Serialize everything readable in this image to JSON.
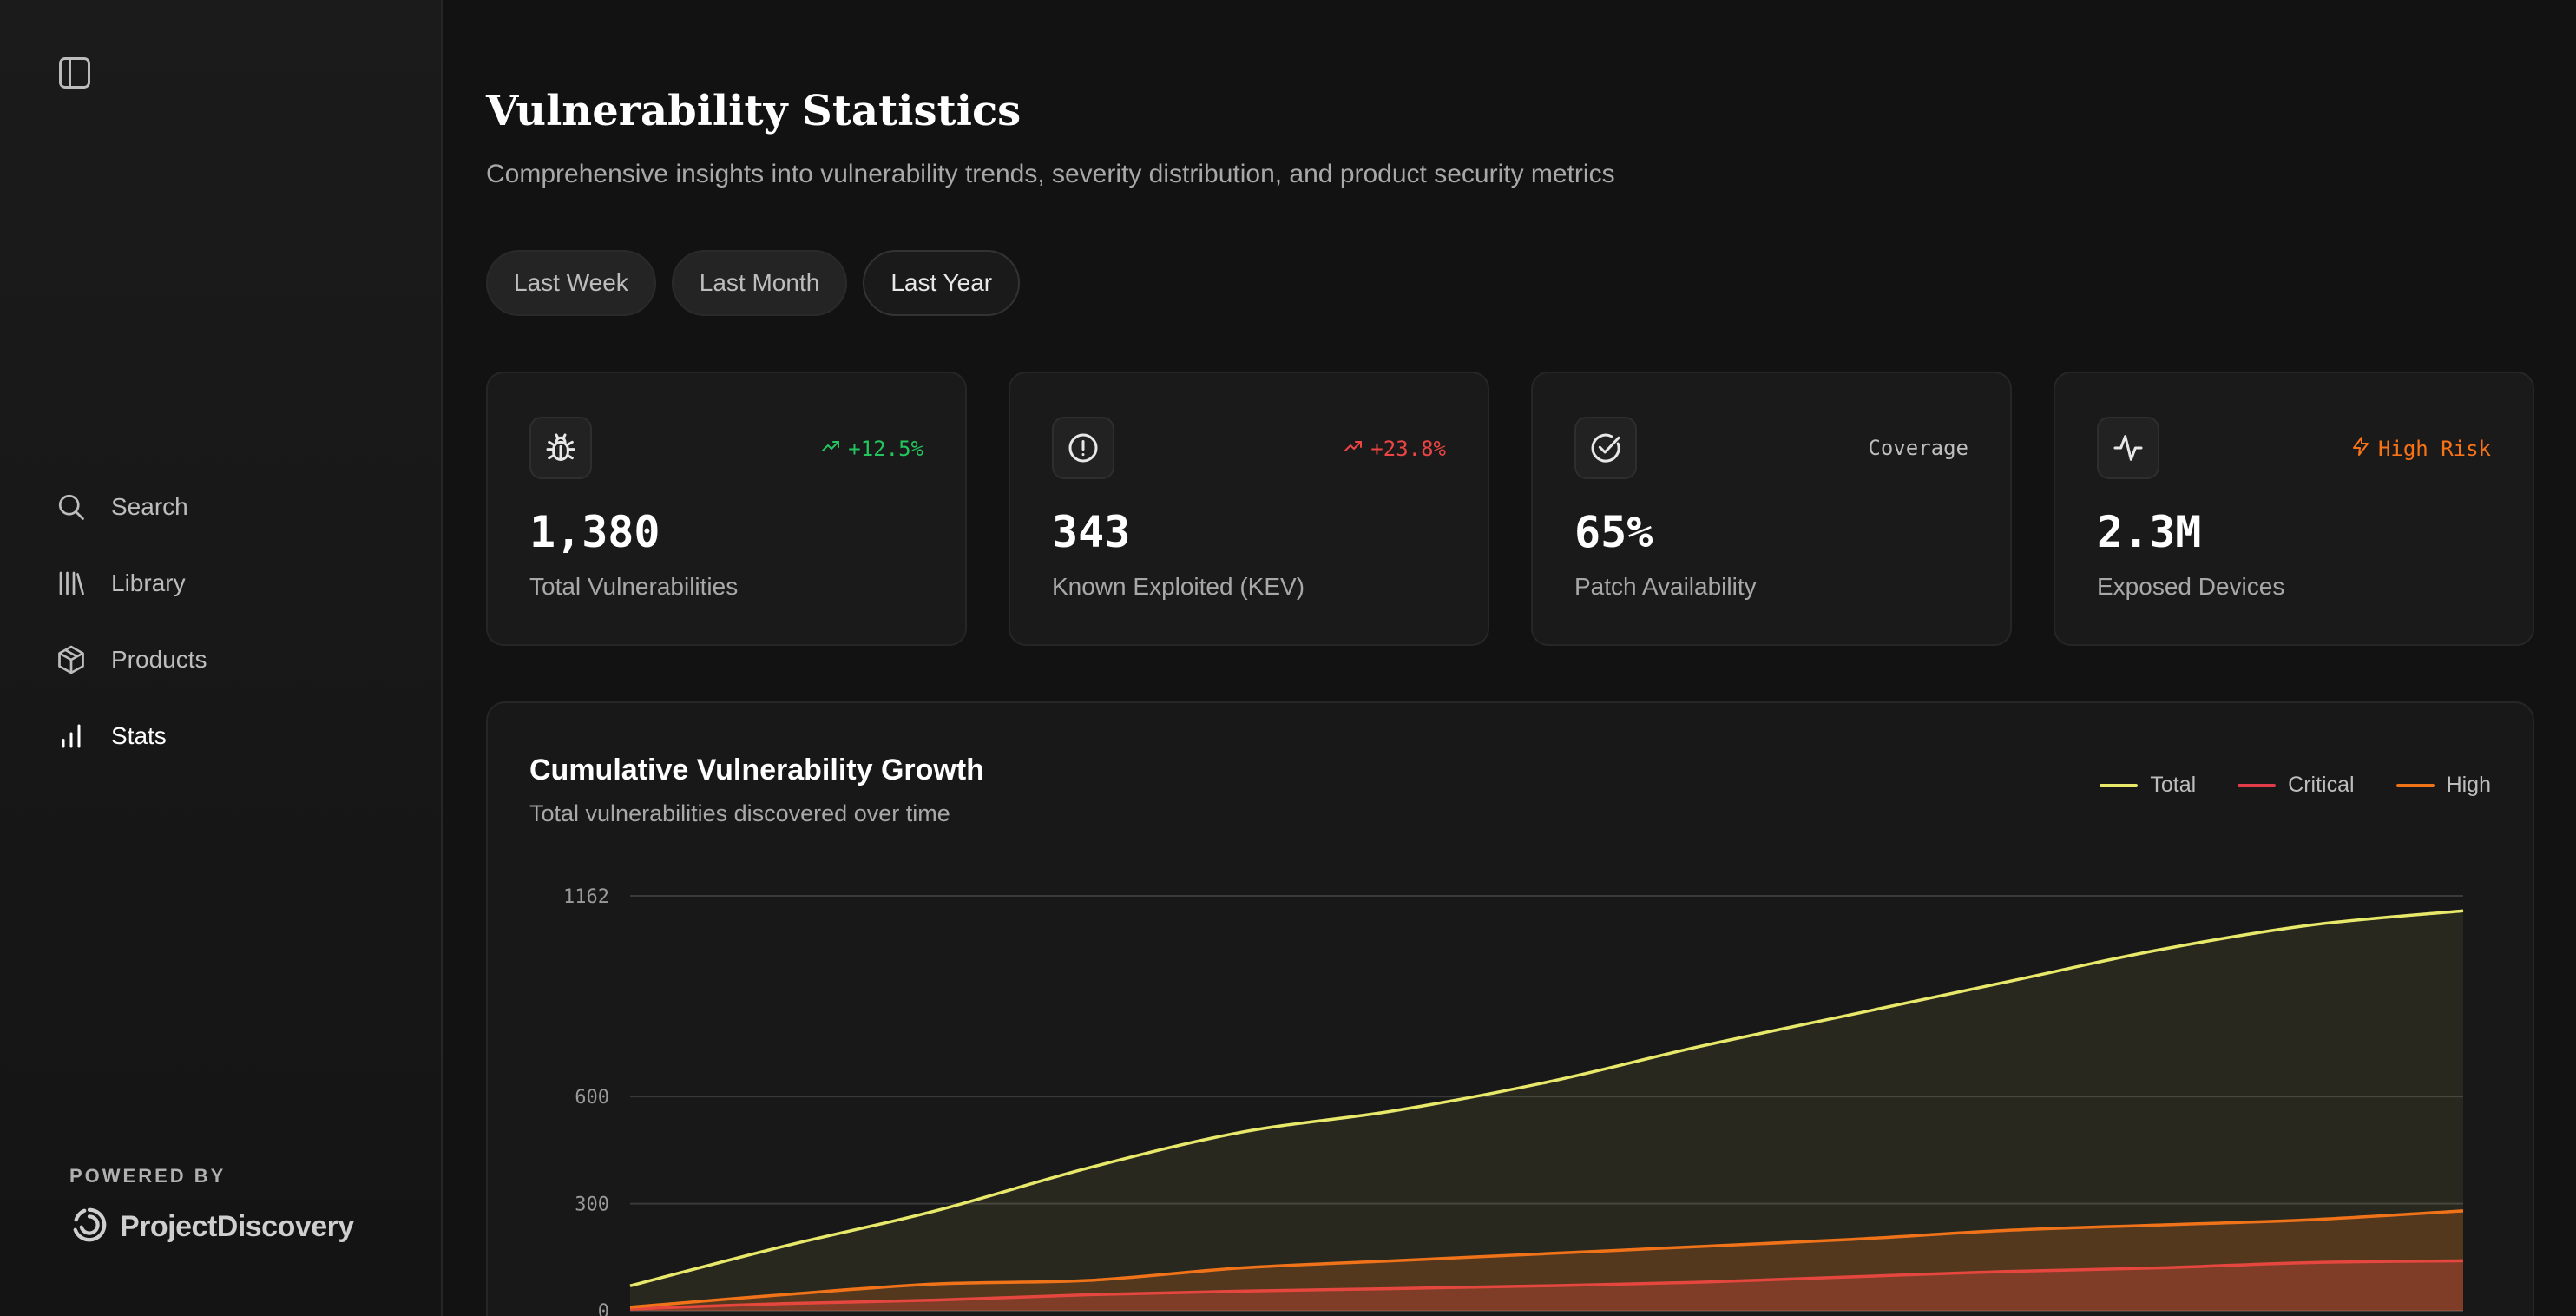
{
  "sidebar": {
    "toggle_icon": "sidebar-toggle-icon",
    "items": [
      {
        "label": "Search",
        "icon": "search-icon"
      },
      {
        "label": "Library",
        "icon": "library-icon"
      },
      {
        "label": "Products",
        "icon": "package-icon"
      },
      {
        "label": "Stats",
        "icon": "bar-chart-icon",
        "active": true
      }
    ],
    "powered_by": "POWERED BY",
    "brand": "ProjectDiscovery"
  },
  "header": {
    "title": "Vulnerability Statistics",
    "subtitle": "Comprehensive insights into vulnerability trends, severity distribution, and product security metrics"
  },
  "filters": [
    {
      "label": "Last Week"
    },
    {
      "label": "Last Month"
    },
    {
      "label": "Last Year",
      "selected": true
    }
  ],
  "stats": [
    {
      "icon": "bug-icon",
      "badge": "+12.5%",
      "badge_icon": "trending-up-icon",
      "badge_color": "#22c55e",
      "value": "1,380",
      "label": "Total Vulnerabilities"
    },
    {
      "icon": "alert-circle-icon",
      "badge": "+23.8%",
      "badge_icon": "trending-up-icon",
      "badge_color": "#ef4444",
      "value": "343",
      "label": "Known Exploited (KEV)"
    },
    {
      "icon": "check-circle-icon",
      "badge": "Coverage",
      "badge_color": "#bdbdbd",
      "value": "65%",
      "label": "Patch Availability"
    },
    {
      "icon": "activity-icon",
      "badge": "High Risk",
      "badge_icon": "zap-icon",
      "badge_color": "#f97316",
      "value": "2.3M",
      "label": "Exposed Devices"
    }
  ],
  "chart": {
    "title": "Cumulative Vulnerability Growth",
    "subtitle": "Total vulnerabilities discovered over time"
  },
  "chart_data": {
    "type": "area",
    "yticks": [
      0,
      300,
      600,
      1162
    ],
    "ylim": [
      0,
      1162
    ],
    "x": [
      0,
      1,
      2,
      3,
      4,
      5,
      6,
      7,
      8,
      9,
      10,
      11,
      12
    ],
    "series": [
      {
        "name": "Total",
        "color": "#e8e86a",
        "values": [
          70,
          180,
          280,
          400,
          500,
          560,
          640,
          740,
          830,
          920,
          1010,
          1080,
          1120
        ]
      },
      {
        "name": "Critical",
        "color": "#e23c4a",
        "values": [
          5,
          20,
          30,
          45,
          55,
          62,
          70,
          80,
          95,
          110,
          120,
          135,
          140
        ]
      },
      {
        "name": "High",
        "color": "#f0731a",
        "values": [
          10,
          45,
          75,
          85,
          120,
          140,
          160,
          180,
          200,
          225,
          240,
          255,
          280
        ]
      }
    ]
  }
}
